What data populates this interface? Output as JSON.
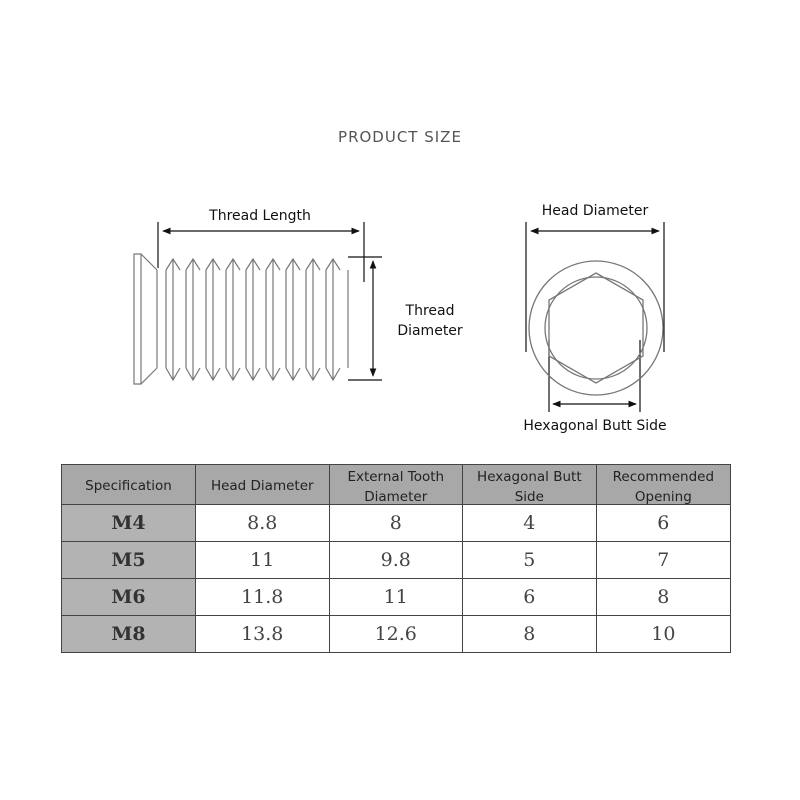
{
  "title": "PRODUCT SIZE",
  "labels": {
    "thread_length": "Thread Length",
    "thread_diameter_1": "Thread",
    "thread_diameter_2": "Diameter",
    "head_diameter": "Head Diameter",
    "hex_butt_side": "Hexagonal Butt Side"
  },
  "table": {
    "headers": [
      "Specification",
      "Head Diameter",
      "External Tooth Diameter",
      "Hexagonal Butt Side",
      "Recommended Opening"
    ],
    "rows": [
      [
        "M4",
        "8.8",
        "8",
        "4",
        "6"
      ],
      [
        "M5",
        "11",
        "9.8",
        "5",
        "7"
      ],
      [
        "M6",
        "11.8",
        "11",
        "6",
        "8"
      ],
      [
        "M8",
        "13.8",
        "12.6",
        "8",
        "10"
      ]
    ]
  }
}
